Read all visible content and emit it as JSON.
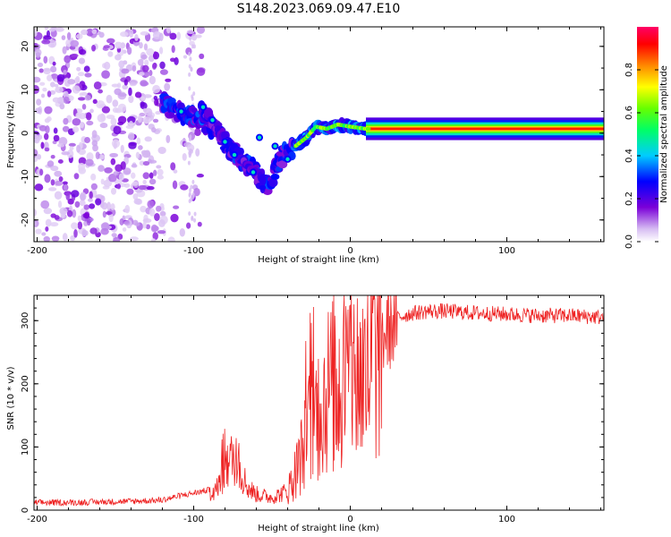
{
  "title": "S148.2023.069.09.47.E10",
  "chart_data": [
    {
      "type": "heatmap",
      "name": "spectrogram",
      "xlabel": "Height of straight line (km)",
      "ylabel": "Frequency (Hz)",
      "xlim": [
        -202,
        162
      ],
      "ylim": [
        -25,
        24.5
      ],
      "xticks": [
        -200,
        -100,
        0,
        100
      ],
      "yticks": [
        -20,
        -10,
        0,
        10,
        20
      ],
      "colorbar": {
        "label": "Normalized spectral amplitude",
        "range": [
          0,
          1
        ],
        "ticks": [
          0.0,
          0.2,
          0.4,
          0.6,
          0.8
        ],
        "tick_labels": [
          "0.0",
          "0.2",
          "0.4",
          "0.6",
          "0.8"
        ]
      },
      "features": {
        "noise_region_x": [
          -202,
          -95
        ],
        "descending_trace": [
          [
            -120,
            7
          ],
          [
            -110,
            5
          ],
          [
            -100,
            4
          ],
          [
            -90,
            2
          ],
          [
            -80,
            -2
          ],
          [
            -70,
            -6
          ],
          [
            -60,
            -9
          ],
          [
            -52,
            -12
          ],
          [
            -45,
            -6
          ],
          [
            -40,
            -4
          ],
          [
            -35,
            -3
          ]
        ],
        "rising_trace": [
          [
            -35,
            -3
          ],
          [
            -28,
            -1
          ],
          [
            -22,
            1.5
          ],
          [
            -15,
            1
          ],
          [
            -8,
            2
          ],
          [
            0,
            1.5
          ],
          [
            10,
            1
          ]
        ],
        "carrier_line": [
          [
            10,
            1
          ],
          [
            50,
            1
          ],
          [
            100,
            1
          ],
          [
            150,
            1
          ],
          [
            162,
            1
          ]
        ]
      }
    },
    {
      "type": "line",
      "name": "snr",
      "xlabel": "Height of straight line (km)",
      "ylabel": "SNR (10 * v/v)",
      "xlim": [
        -202,
        162
      ],
      "ylim": [
        0,
        340
      ],
      "xticks": [
        -200,
        -100,
        0,
        100
      ],
      "yticks": [
        0,
        100,
        200,
        300
      ],
      "color": "#ee2222",
      "envelope": [
        [
          -202,
          10
        ],
        [
          -180,
          10
        ],
        [
          -160,
          11
        ],
        [
          -140,
          12
        ],
        [
          -120,
          14
        ],
        [
          -110,
          20
        ],
        [
          -100,
          25
        ],
        [
          -90,
          30
        ],
        [
          -85,
          35
        ],
        [
          -80,
          60
        ],
        [
          -75,
          85
        ],
        [
          -70,
          60
        ],
        [
          -65,
          35
        ],
        [
          -60,
          25
        ],
        [
          -50,
          20
        ],
        [
          -40,
          30
        ],
        [
          -35,
          60
        ],
        [
          -30,
          95
        ],
        [
          -25,
          140
        ],
        [
          -20,
          160
        ],
        [
          -15,
          190
        ],
        [
          -10,
          200
        ],
        [
          -5,
          210
        ],
        [
          0,
          225
        ],
        [
          5,
          215
        ],
        [
          10,
          210
        ],
        [
          15,
          240
        ],
        [
          20,
          270
        ],
        [
          25,
          290
        ],
        [
          30,
          305
        ],
        [
          40,
          312
        ],
        [
          50,
          315
        ],
        [
          60,
          315
        ],
        [
          80,
          312
        ],
        [
          100,
          310
        ],
        [
          120,
          308
        ],
        [
          140,
          308
        ],
        [
          162,
          305
        ]
      ]
    }
  ]
}
